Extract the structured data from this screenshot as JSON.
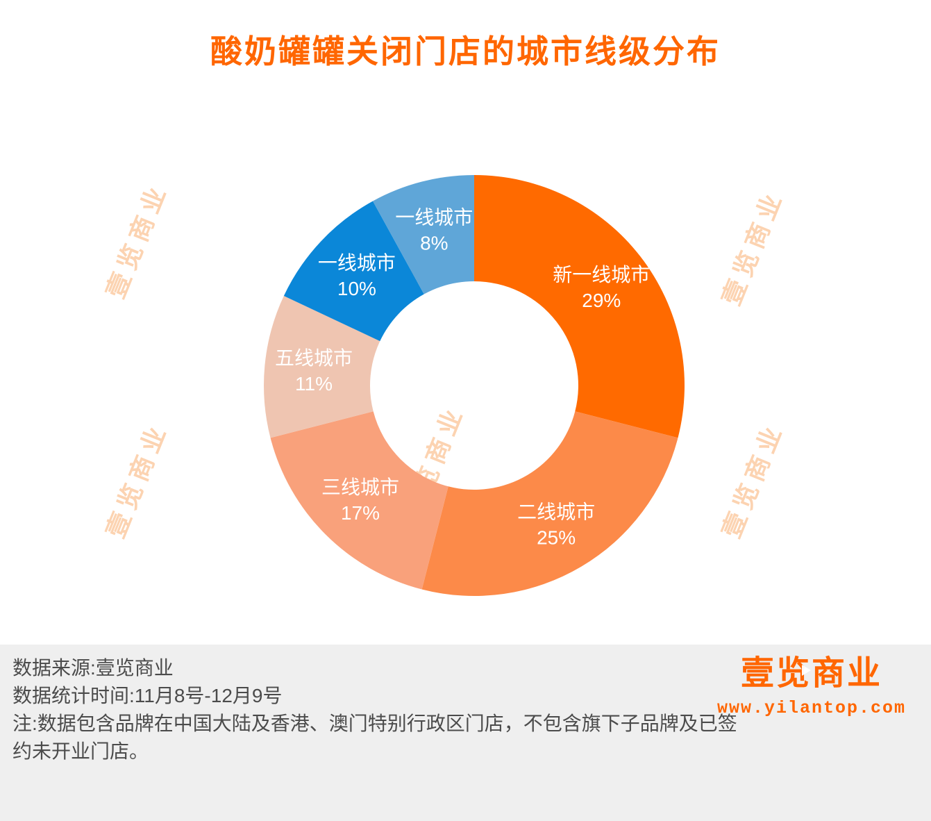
{
  "title": "酸奶罐罐关闭门店的城市线级分布",
  "watermark": {
    "text": "壹览商业"
  },
  "chart_data": {
    "type": "pie",
    "subtype": "donut",
    "title": "酸奶罐罐关闭门店的城市线级分布",
    "direction": "clockwise",
    "start_angle_deg": 0,
    "legend_position": "none",
    "segments": [
      {
        "label": "新一线城市",
        "value": 29,
        "color": "#FF6A00"
      },
      {
        "label": "二线城市",
        "value": 25,
        "color": "#FC8A49"
      },
      {
        "label": "三线城市",
        "value": 17,
        "color": "#F9A17B"
      },
      {
        "label": "五线城市",
        "value": 11,
        "color": "#EFC5B1"
      },
      {
        "label": "一线城市",
        "value": 10,
        "color": "#0B87D8"
      },
      {
        "label": "一线城市",
        "value": 8,
        "color": "#5FA6D8"
      }
    ]
  },
  "footer": {
    "source": "数据来源:壹览商业",
    "period": "数据统计时间:11月8号-12月9号",
    "note": "注:数据包含品牌在中国大陆及香港、澳门特别行政区门店，不包含旗下子品牌及已签约未开业门店。"
  },
  "branding": {
    "logo": "壹览商业",
    "website": "www.yilantop.com"
  }
}
